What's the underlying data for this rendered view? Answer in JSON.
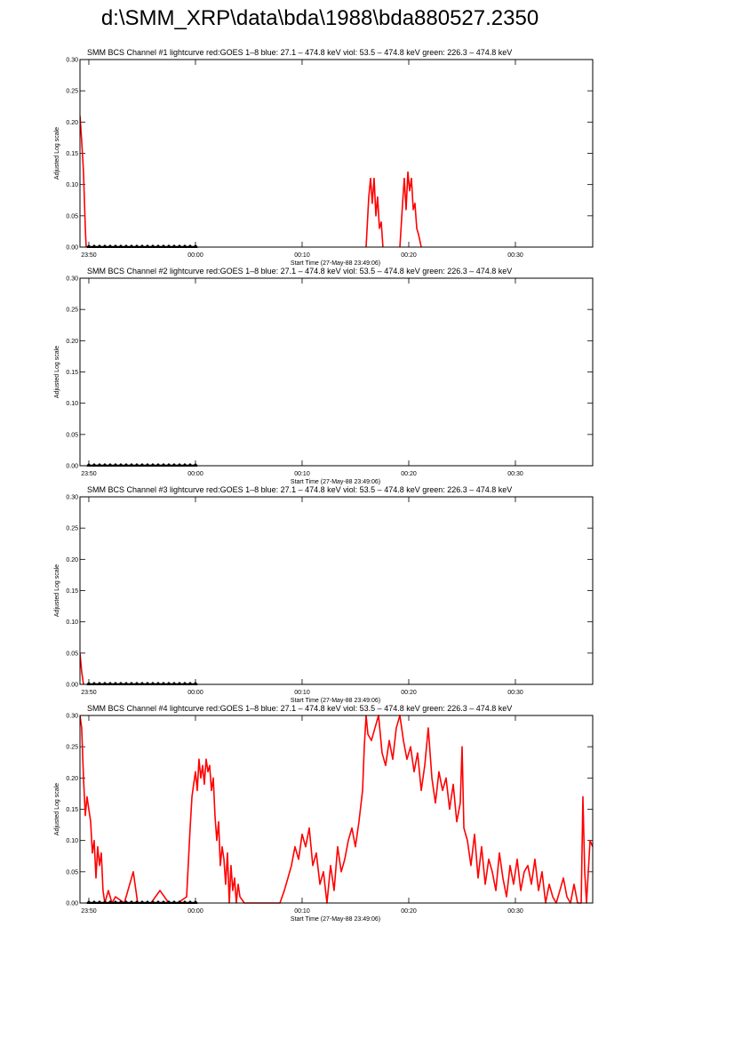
{
  "page_title": "d:\\SMM_XRP\\data\\bda\\1988\\bda880527.2350",
  "chart_data": [
    {
      "type": "line",
      "title": "SMM BCS Channel #1 lightcurve  red:GOES 1–8  blue: 27.1 – 474.8 keV  viol: 53.5 – 474.8 keV  green: 226.3 – 474.8 keV",
      "xlabel": "Start Time (27-May-88 23:49:06)",
      "ylabel": "Adjusted Log scale",
      "xlim": [
        1429.17,
        1477.25
      ],
      "ylim": [
        0,
        0.3
      ],
      "xticks": [
        {
          "value": 1430,
          "label": "23:50"
        },
        {
          "value": 1440,
          "label": "00:00"
        },
        {
          "value": 1450,
          "label": "00:10"
        },
        {
          "value": 1460,
          "label": "00:20"
        },
        {
          "value": 1470,
          "label": "00:30"
        }
      ],
      "yticks": [
        {
          "value": 0,
          "label": "0.00"
        },
        {
          "value": 0.05,
          "label": "0.05"
        },
        {
          "value": 0.1,
          "label": "0.10"
        },
        {
          "value": 0.15,
          "label": "0.15"
        },
        {
          "value": 0.2,
          "label": "0.20"
        },
        {
          "value": 0.25,
          "label": "0.25"
        },
        {
          "value": 0.3,
          "label": "0.30"
        }
      ],
      "series": [
        {
          "color": "#ff0000",
          "x": [
            1429.17,
            1429.33,
            1429.5,
            1429.67,
            1429.75,
            null,
            1456.0,
            1456.25,
            1456.42,
            1456.58,
            1456.75,
            1456.92,
            1457.08,
            1457.25,
            1457.42,
            1457.58,
            null,
            1459.17,
            1459.42,
            1459.58,
            1459.75,
            1459.92,
            1460.08,
            1460.25,
            1460.42,
            1460.58,
            1460.75,
            1460.92,
            1461.17
          ],
          "values": [
            0.21,
            0.17,
            0.12,
            0.03,
            0,
            null,
            0,
            0.08,
            0.11,
            0.07,
            0.11,
            0.05,
            0.08,
            0.03,
            0.04,
            0,
            null,
            0,
            0.07,
            0.11,
            0.06,
            0.12,
            0.09,
            0.11,
            0.06,
            0.07,
            0.03,
            0.02,
            0
          ]
        },
        {
          "color": "#000000",
          "marker": "diamond",
          "x": [
            1430,
            1430.5,
            1431,
            1431.5,
            1432,
            1432.5,
            1433,
            1433.5,
            1434,
            1434.5,
            1435,
            1435.5,
            1436,
            1436.5,
            1437,
            1437.5,
            1438,
            1438.5,
            1439,
            1439.5,
            1440
          ],
          "values": [
            0,
            0,
            0,
            0,
            0,
            0,
            0,
            0,
            0,
            0,
            0,
            0,
            0,
            0,
            0,
            0,
            0,
            0,
            0,
            0,
            0
          ]
        }
      ]
    },
    {
      "type": "line",
      "title": "SMM BCS Channel #2 lightcurve  red:GOES 1–8  blue: 27.1 – 474.8 keV  viol: 53.5 – 474.8 keV  green: 226.3 – 474.8 keV",
      "xlabel": "Start Time (27-May-88 23:49:06)",
      "ylabel": "Adjusted Log scale",
      "xlim": [
        1429.17,
        1477.25
      ],
      "ylim": [
        0,
        0.3
      ],
      "xticks": [
        {
          "value": 1430,
          "label": "23:50"
        },
        {
          "value": 1440,
          "label": "00:00"
        },
        {
          "value": 1450,
          "label": "00:10"
        },
        {
          "value": 1460,
          "label": "00:20"
        },
        {
          "value": 1470,
          "label": "00:30"
        }
      ],
      "yticks": [
        {
          "value": 0,
          "label": "0.00"
        },
        {
          "value": 0.05,
          "label": "0.05"
        },
        {
          "value": 0.1,
          "label": "0.10"
        },
        {
          "value": 0.15,
          "label": "0.15"
        },
        {
          "value": 0.2,
          "label": "0.20"
        },
        {
          "value": 0.25,
          "label": "0.25"
        },
        {
          "value": 0.3,
          "label": "0.30"
        }
      ],
      "series": [
        {
          "color": "#000000",
          "marker": "diamond",
          "x": [
            1430,
            1430.5,
            1431,
            1431.5,
            1432,
            1432.5,
            1433,
            1433.5,
            1434,
            1434.5,
            1435,
            1435.5,
            1436,
            1436.5,
            1437,
            1437.5,
            1438,
            1438.5,
            1439,
            1439.5,
            1440
          ],
          "values": [
            0,
            0,
            0,
            0,
            0,
            0,
            0,
            0,
            0,
            0,
            0,
            0,
            0,
            0,
            0,
            0,
            0,
            0,
            0,
            0,
            0
          ]
        }
      ]
    },
    {
      "type": "line",
      "title": "SMM BCS Channel #3 lightcurve  red:GOES 1–8  blue: 27.1 – 474.8 keV  viol: 53.5 – 474.8 keV  green: 226.3 – 474.8 keV",
      "xlabel": "Start Time (27-May-88 23:49:06)",
      "ylabel": "Adjusted Log scale",
      "xlim": [
        1429.17,
        1477.25
      ],
      "ylim": [
        0,
        0.3
      ],
      "xticks": [
        {
          "value": 1430,
          "label": "23:50"
        },
        {
          "value": 1440,
          "label": "00:00"
        },
        {
          "value": 1450,
          "label": "00:10"
        },
        {
          "value": 1460,
          "label": "00:20"
        },
        {
          "value": 1470,
          "label": "00:30"
        }
      ],
      "yticks": [
        {
          "value": 0,
          "label": "0.00"
        },
        {
          "value": 0.05,
          "label": "0.05"
        },
        {
          "value": 0.1,
          "label": "0.10"
        },
        {
          "value": 0.15,
          "label": "0.15"
        },
        {
          "value": 0.2,
          "label": "0.20"
        },
        {
          "value": 0.25,
          "label": "0.25"
        },
        {
          "value": 0.3,
          "label": "0.30"
        }
      ],
      "series": [
        {
          "color": "#ff0000",
          "x": [
            1429.17,
            1429.33,
            1429.5
          ],
          "values": [
            0.05,
            0.02,
            0
          ]
        },
        {
          "color": "#000000",
          "marker": "diamond",
          "x": [
            1430,
            1430.5,
            1431,
            1431.5,
            1432,
            1432.5,
            1433,
            1433.5,
            1434,
            1434.5,
            1435,
            1435.5,
            1436,
            1436.5,
            1437,
            1437.5,
            1438,
            1438.5,
            1439,
            1439.5,
            1440
          ],
          "values": [
            0,
            0,
            0,
            0,
            0,
            0,
            0,
            0,
            0,
            0,
            0,
            0,
            0,
            0,
            0,
            0,
            0,
            0,
            0,
            0,
            0
          ]
        }
      ]
    },
    {
      "type": "line",
      "title": "SMM BCS Channel #4 lightcurve  red:GOES 1–8  blue: 27.1 – 474.8 keV  viol: 53.5 – 474.8 keV  green: 226.3 – 474.8 keV",
      "xlabel": "Start Time (27-May-88 23:49:06)",
      "ylabel": "Adjusted Log scale",
      "xlim": [
        1429.17,
        1477.25
      ],
      "ylim": [
        0,
        0.3
      ],
      "xticks": [
        {
          "value": 1430,
          "label": "23:50"
        },
        {
          "value": 1440,
          "label": "00:00"
        },
        {
          "value": 1450,
          "label": "00:10"
        },
        {
          "value": 1460,
          "label": "00:20"
        },
        {
          "value": 1470,
          "label": "00:30"
        }
      ],
      "yticks": [
        {
          "value": 0,
          "label": "0.00"
        },
        {
          "value": 0.05,
          "label": "0.05"
        },
        {
          "value": 0.1,
          "label": "0.10"
        },
        {
          "value": 0.15,
          "label": "0.15"
        },
        {
          "value": 0.2,
          "label": "0.20"
        },
        {
          "value": 0.25,
          "label": "0.25"
        },
        {
          "value": 0.3,
          "label": "0.30"
        }
      ],
      "series": [
        {
          "color": "#ff0000",
          "x": [
            1429.17,
            1429.33,
            1429.5,
            1429.67,
            1429.83,
            1430,
            1430.17,
            1430.33,
            1430.5,
            1430.67,
            1430.83,
            1431,
            1431.17,
            1431.33,
            1431.5,
            1431.83,
            1432.17,
            1432.5,
            1433.33,
            1434.17,
            1434.58,
            1435.83,
            1436.67,
            1437.5,
            1438.33,
            1439.17,
            1439.5,
            1439.67,
            1439.83,
            1440,
            1440.17,
            1440.33,
            1440.5,
            1440.67,
            1440.83,
            1441,
            1441.17,
            1441.33,
            1441.5,
            1441.67,
            1441.83,
            1442,
            1442.17,
            1442.33,
            1442.5,
            1442.67,
            1442.83,
            1443,
            1443.17,
            1443.33,
            1443.5,
            1443.67,
            1443.83,
            1444,
            1444.17,
            1444.58,
            1445.83,
            1446.67,
            1447.92,
            1448.33,
            1448.67,
            1449,
            1449.33,
            1449.67,
            1450,
            1450.33,
            1450.67,
            1451,
            1451.33,
            1451.67,
            1452,
            1452.33,
            1452.67,
            1453,
            1453.33,
            1453.67,
            1454,
            1454.33,
            1454.67,
            1455,
            1455.33,
            1455.67,
            1455.83,
            1456,
            1456.17,
            1456.5,
            1456.83,
            1457.17,
            1457.5,
            1457.83,
            1458.17,
            1458.5,
            1458.83,
            1459.17,
            1459.5,
            1459.83,
            1460.17,
            1460.5,
            1460.83,
            1461.17,
            1461.5,
            1461.83,
            1462.17,
            1462.5,
            1462.83,
            1463.17,
            1463.5,
            1463.83,
            1464.17,
            1464.5,
            1464.83,
            1465,
            1465.17,
            1465.5,
            1465.83,
            1466.17,
            1466.5,
            1466.83,
            1467.17,
            1467.5,
            1467.83,
            1468.17,
            1468.5,
            1468.83,
            1469.17,
            1469.5,
            1469.83,
            1470.17,
            1470.5,
            1470.83,
            1471.17,
            1471.5,
            1471.83,
            1472.17,
            1472.5,
            1472.83,
            1473.17,
            1473.5,
            1473.83,
            1474.17,
            1474.5,
            1474.83,
            1475.17,
            1475.5,
            1475.83,
            1476.17,
            1476.33,
            1476.5,
            1476.67,
            1477,
            1477.25
          ],
          "values": [
            0.3,
            0.28,
            0.2,
            0.14,
            0.17,
            0.15,
            0.13,
            0.08,
            0.1,
            0.04,
            0.09,
            0.06,
            0.08,
            0.02,
            0,
            0.02,
            0,
            0.01,
            0,
            0.05,
            0,
            0,
            0.02,
            0,
            0,
            0.01,
            0.12,
            0.17,
            0.19,
            0.21,
            0.18,
            0.23,
            0.2,
            0.22,
            0.19,
            0.23,
            0.21,
            0.22,
            0.18,
            0.2,
            0.14,
            0.1,
            0.13,
            0.06,
            0.09,
            0.07,
            0.03,
            0.08,
            0,
            0.06,
            0.02,
            0.04,
            0,
            0.03,
            0.01,
            0,
            0,
            0,
            0,
            0.02,
            0.04,
            0.06,
            0.09,
            0.07,
            0.11,
            0.09,
            0.12,
            0.06,
            0.08,
            0.03,
            0.05,
            0,
            0.06,
            0.02,
            0.09,
            0.05,
            0.07,
            0.1,
            0.12,
            0.09,
            0.13,
            0.18,
            0.25,
            0.3,
            0.27,
            0.26,
            0.28,
            0.3,
            0.24,
            0.22,
            0.26,
            0.23,
            0.28,
            0.3,
            0.26,
            0.23,
            0.25,
            0.21,
            0.24,
            0.18,
            0.22,
            0.28,
            0.2,
            0.16,
            0.21,
            0.18,
            0.2,
            0.15,
            0.19,
            0.13,
            0.16,
            0.25,
            0.12,
            0.1,
            0.06,
            0.11,
            0.04,
            0.09,
            0.03,
            0.07,
            0.05,
            0.02,
            0.08,
            0.04,
            0.01,
            0.06,
            0.03,
            0.07,
            0.02,
            0.05,
            0.06,
            0.03,
            0.07,
            0.02,
            0.05,
            0,
            0.03,
            0.01,
            0,
            0.02,
            0.04,
            0.01,
            0,
            0.03,
            0,
            0,
            0.17,
            0.05,
            0,
            0.1,
            0.09
          ]
        },
        {
          "color": "#000000",
          "marker": "diamond",
          "x": [
            1430,
            1430.5,
            1431,
            1431.5,
            1432,
            1432.5,
            1433,
            1433.5,
            1434,
            1434.5,
            1435,
            1435.5,
            1436,
            1436.5,
            1437,
            1437.5,
            1438,
            1438.5,
            1439,
            1439.5,
            1440
          ],
          "values": [
            0,
            0,
            0,
            0,
            0,
            0,
            0,
            0,
            0,
            0,
            0,
            0,
            0,
            0,
            0,
            0,
            0,
            0,
            0,
            0,
            0
          ]
        }
      ]
    }
  ]
}
